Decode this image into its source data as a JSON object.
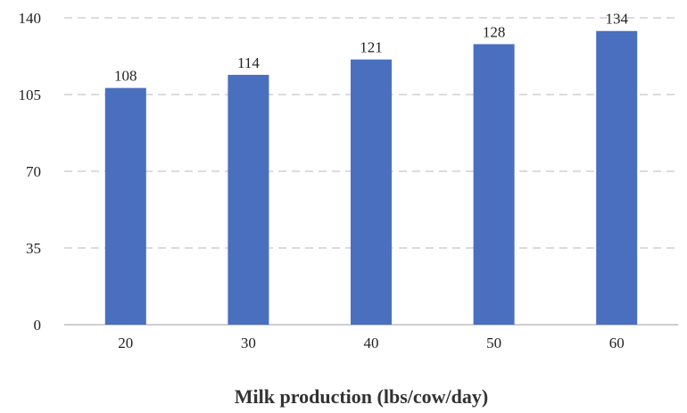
{
  "chart_data": {
    "type": "bar",
    "title": "",
    "xlabel": "Milk production (lbs/cow/day)",
    "ylabel": "",
    "categories": [
      "20",
      "30",
      "40",
      "50",
      "60"
    ],
    "values": [
      108,
      114,
      121,
      128,
      134
    ],
    "ylim": [
      0,
      140
    ],
    "yticks": [
      "0",
      "35",
      "70",
      "105",
      "140"
    ],
    "grid": true,
    "grid_style": "dashed",
    "legend": "none",
    "bar_color": "#4a6fbf",
    "grid_color": "#c8c8c8",
    "axis_color": "#b0b0b0"
  }
}
